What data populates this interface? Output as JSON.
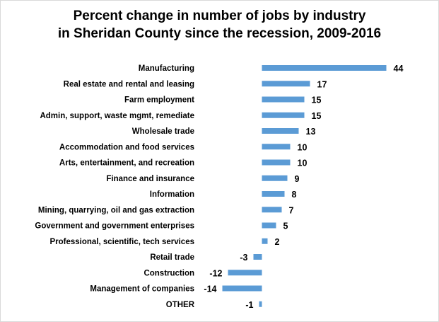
{
  "chart_data": {
    "type": "bar",
    "orientation": "horizontal",
    "title_lines": [
      "Percent change in number of jobs by industry",
      "in Sheridan County since the recession, 2009-2016"
    ],
    "categories": [
      "Manufacturing",
      "Real estate and rental and leasing",
      "Farm employment",
      "Admin, support, waste mgmt, remediate",
      "Wholesale trade",
      "Accommodation and food services",
      "Arts, entertainment, and recreation",
      "Finance and insurance",
      "Information",
      "Mining, quarrying, oil and gas extraction",
      "Government and government enterprises",
      "Professional, scientific, tech services",
      "Retail trade",
      "Construction",
      "Management of companies",
      "OTHER"
    ],
    "values": [
      44,
      17,
      15,
      15,
      13,
      10,
      10,
      9,
      8,
      7,
      5,
      2,
      -3,
      -12,
      -14,
      -1
    ],
    "bar_color": "#5b9bd5",
    "grid": false,
    "legend": false
  }
}
